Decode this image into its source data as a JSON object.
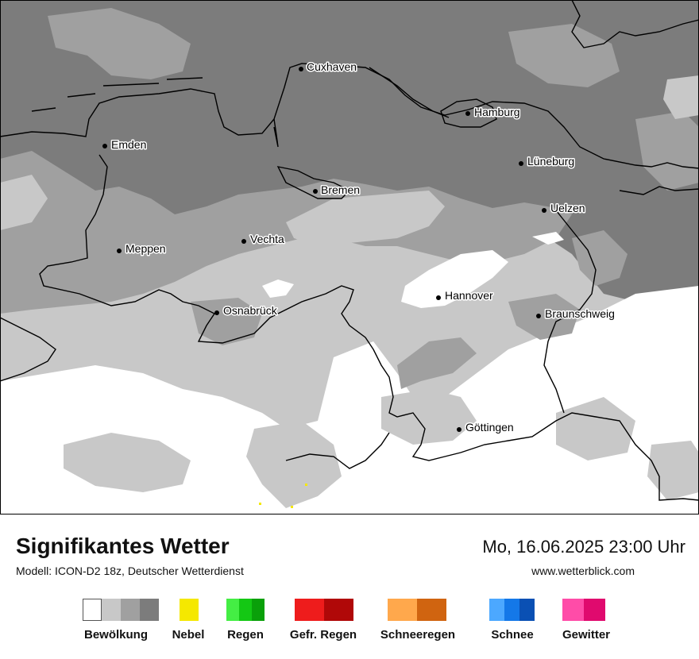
{
  "title": "Signifikantes Wetter",
  "model": "Modell: ICON-D2 18z, Deutscher Wetterdienst",
  "datetime": "Mo, 16.06.2025 23:00 Uhr",
  "website": "www.wetterblick.com",
  "colors": {
    "cloud_1": "#ffffff",
    "cloud_2": "#c8c8c8",
    "cloud_3": "#a0a0a0",
    "cloud_4": "#7c7c7c",
    "fog": "#f5e800",
    "rain": [
      "#44ee44",
      "#14c814",
      "#0aa00a"
    ],
    "freezing_rain": [
      "#ee1c1c",
      "#b00808"
    ],
    "snow_rain": [
      "#ffa84c",
      "#d06410"
    ],
    "snow": [
      "#4ca8ff",
      "#1478e8",
      "#0a50b4"
    ],
    "thunderstorm": [
      "#ff4ca8",
      "#e00a6e"
    ]
  },
  "legend": [
    {
      "label": "Bewölkung",
      "colors": [
        "#ffffff",
        "#c8c8c8",
        "#a0a0a0",
        "#7c7c7c"
      ]
    },
    {
      "label": "Nebel",
      "colors": [
        "#f5e800"
      ]
    },
    {
      "label": "Regen",
      "colors": [
        "#44ee44",
        "#14c814",
        "#0aa00a"
      ]
    },
    {
      "label": "Gefr. Regen",
      "colors": [
        "#ee1c1c",
        "#b00808"
      ]
    },
    {
      "label": "Schneeregen",
      "colors": [
        "#ffa84c",
        "#d06410"
      ]
    },
    {
      "label": "Schnee",
      "colors": [
        "#4ca8ff",
        "#1478e8",
        "#0a50b4"
      ]
    },
    {
      "label": "Gewitter",
      "colors": [
        "#ff4ca8",
        "#e00a6e"
      ]
    }
  ],
  "cities": [
    "Cuxhaven",
    "Hamburg",
    "Emden",
    "Lüneburg",
    "Bremen",
    "Uelzen",
    "Vechta",
    "Meppen",
    "Hannover",
    "Osnabrück",
    "Braunschweig",
    "Göttingen"
  ]
}
